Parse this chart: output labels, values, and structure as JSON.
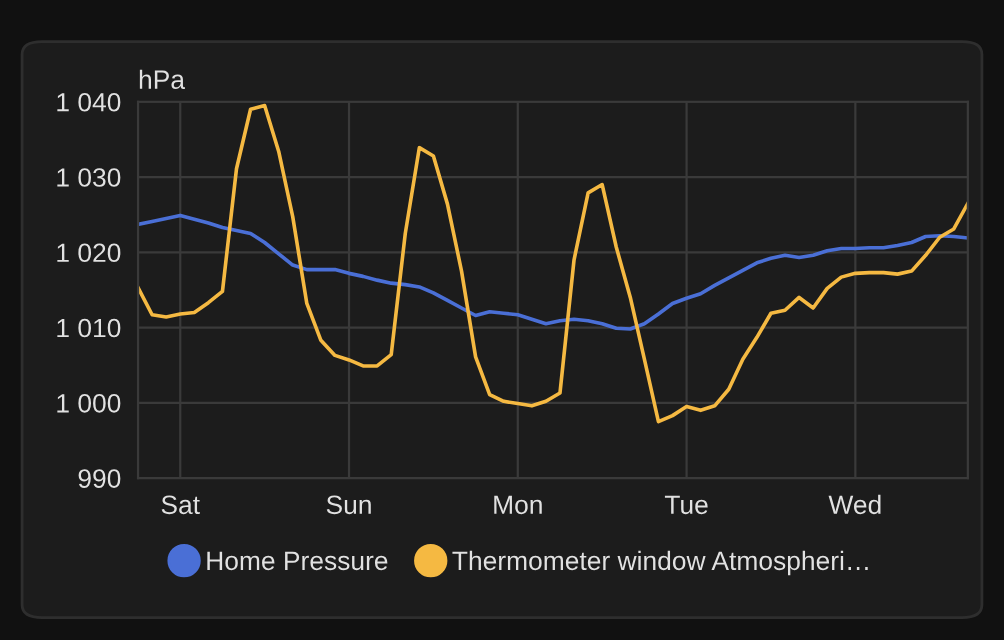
{
  "chart_data": {
    "type": "line",
    "ylabel": "hPa",
    "categories": [
      null,
      null,
      null,
      "Sat",
      null,
      null,
      null,
      null,
      null,
      null,
      null,
      null,
      null,
      null,
      null,
      "Sun",
      null,
      null,
      null,
      null,
      null,
      null,
      null,
      null,
      null,
      null,
      null,
      "Mon",
      null,
      null,
      null,
      null,
      null,
      null,
      null,
      null,
      null,
      null,
      null,
      "Tue",
      null,
      null,
      null,
      null,
      null,
      null,
      null,
      null,
      null,
      null,
      null,
      "Wed",
      null,
      null,
      null,
      null,
      null,
      null,
      null,
      null
    ],
    "ylim": [
      990,
      1040
    ],
    "yticks": [
      {
        "value": 990,
        "label": "990"
      },
      {
        "value": 1000,
        "label": "1 000"
      },
      {
        "value": 1010,
        "label": "1 010"
      },
      {
        "value": 1020,
        "label": "1 020"
      },
      {
        "value": 1030,
        "label": "1 030"
      },
      {
        "value": 1040,
        "label": "1 040"
      }
    ],
    "grid": true,
    "legend": "bottom",
    "marker": "none",
    "line_style": "solid",
    "series": [
      {
        "name": "Home Pressure",
        "color": "#4a6fd6",
        "values": [
          1023.7,
          1024.1,
          1024.5,
          1024.9,
          1024.4,
          1023.9,
          1023.3,
          1022.9,
          1022.5,
          1021.3,
          1019.8,
          1018.3,
          1017.7,
          1017.7,
          1017.7,
          1017.2,
          1016.8,
          1016.3,
          1015.9,
          1015.7,
          1015.4,
          1014.6,
          1013.6,
          1012.6,
          1011.6,
          1012.1,
          1011.9,
          1011.7,
          1011.1,
          1010.5,
          1010.9,
          1011.1,
          1010.9,
          1010.5,
          1009.9,
          1009.8,
          1010.5,
          1011.8,
          1013.2,
          1013.9,
          1014.5,
          1015.6,
          1016.6,
          1017.6,
          1018.6,
          1019.2,
          1019.6,
          1019.3,
          1019.6,
          1020.2,
          1020.5,
          1020.5,
          1020.6,
          1020.6,
          1020.9,
          1021.3,
          1022.1,
          1022.2,
          1022.1,
          1021.9
        ]
      },
      {
        "name": "Thermometer window Atmospheri…",
        "color": "#f5b942",
        "values": [
          1015.3,
          1011.7,
          1011.4,
          1011.8,
          1012.0,
          1013.3,
          1014.8,
          1031.1,
          1039.0,
          1039.5,
          1033.4,
          1024.7,
          1013.2,
          1008.3,
          1006.3,
          1005.7,
          1004.9,
          1004.9,
          1006.4,
          1022.5,
          1033.9,
          1032.8,
          1026.4,
          1017.5,
          1006.1,
          1001.1,
          1000.2,
          999.9,
          999.6,
          1000.2,
          1001.3,
          1019.0,
          1027.9,
          1029.0,
          1020.7,
          1014.0,
          1005.8,
          997.5,
          998.3,
          999.5,
          999.0,
          999.6,
          1001.8,
          1005.8,
          1008.7,
          1011.9,
          1012.3,
          1014.0,
          1012.6,
          1015.2,
          1016.7,
          1017.2,
          1017.3,
          1017.3,
          1017.1,
          1017.5,
          1019.6,
          1022.0,
          1023.1,
          1026.5
        ]
      }
    ]
  }
}
